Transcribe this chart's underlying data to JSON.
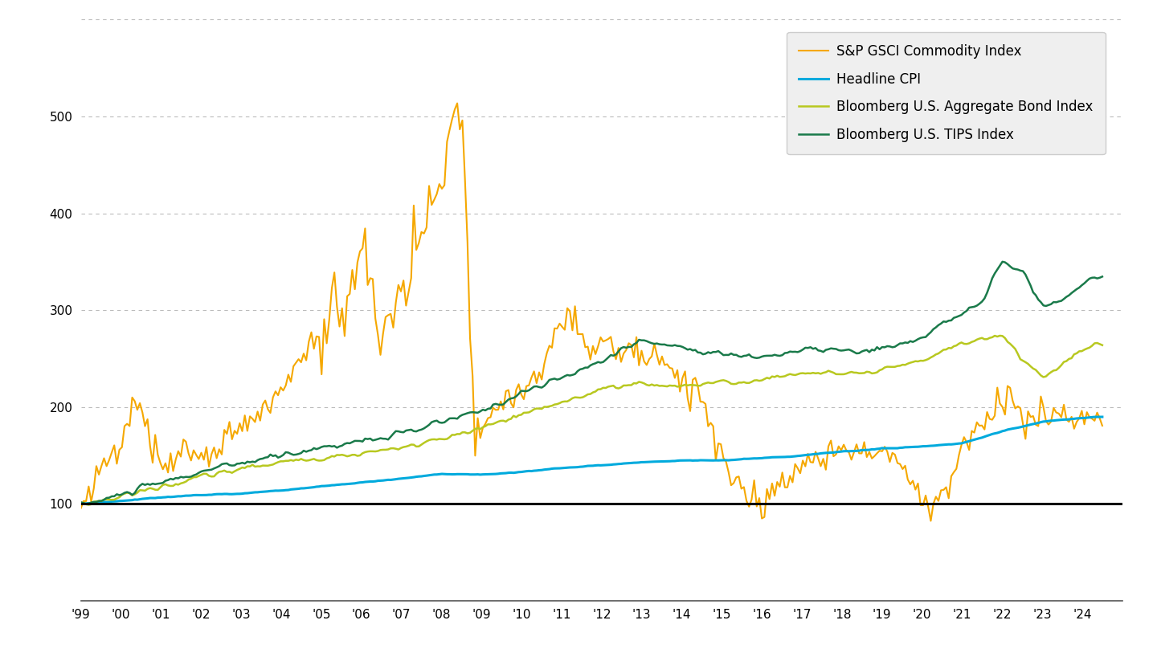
{
  "series": {
    "TIPS": {
      "label": "Bloomberg U.S. TIPS Index",
      "color": "#1a7a4a",
      "linewidth": 1.8
    },
    "AGG": {
      "label": "Bloomberg U.S. Aggregate Bond Index",
      "color": "#b8c820",
      "linewidth": 1.8
    },
    "CPI": {
      "label": "Headline CPI",
      "color": "#00aadd",
      "linewidth": 2.2
    },
    "GSCI": {
      "label": "S&P GSCI Commodity Index",
      "color": "#f5a800",
      "linewidth": 1.5
    }
  },
  "ylim": [
    0,
    600
  ],
  "yticks": [
    0,
    100,
    200,
    300,
    400,
    500,
    600
  ],
  "background_color": "#ffffff",
  "grid_color": "#aaaaaa",
  "legend_bg": "#efefef",
  "x_labels": [
    "'99",
    "'00",
    "'01",
    "'02",
    "'03",
    "'04",
    "'05",
    "'06",
    "'07",
    "'08",
    "'09",
    "'10",
    "'11",
    "'12",
    "'13",
    "'14",
    "'15",
    "'16",
    "'17",
    "'18",
    "'19",
    "'20",
    "'21",
    "'22",
    "'23",
    "'24"
  ],
  "tips_keypoints": {
    "years": [
      1999.0,
      1999.5,
      2000.0,
      2000.5,
      2001.0,
      2001.5,
      2002.0,
      2002.5,
      2003.0,
      2003.5,
      2004.0,
      2004.5,
      2005.0,
      2005.5,
      2006.0,
      2006.5,
      2007.0,
      2007.5,
      2008.0,
      2008.5,
      2009.0,
      2009.5,
      2010.0,
      2010.5,
      2011.0,
      2011.5,
      2012.0,
      2012.5,
      2013.0,
      2013.5,
      2014.0,
      2014.5,
      2015.0,
      2015.5,
      2016.0,
      2016.5,
      2017.0,
      2017.5,
      2018.0,
      2018.5,
      2019.0,
      2019.5,
      2020.0,
      2020.5,
      2021.0,
      2021.5,
      2022.0,
      2022.5,
      2023.0,
      2023.5,
      2024.3
    ],
    "values": [
      100,
      103,
      110,
      116,
      122,
      127,
      133,
      138,
      142,
      146,
      150,
      154,
      158,
      162,
      165,
      168,
      172,
      178,
      185,
      190,
      196,
      205,
      215,
      222,
      230,
      238,
      248,
      260,
      268,
      265,
      262,
      258,
      255,
      252,
      252,
      255,
      258,
      260,
      258,
      256,
      260,
      265,
      272,
      285,
      295,
      310,
      350,
      340,
      305,
      310,
      335
    ]
  },
  "agg_keypoints": {
    "years": [
      1999.0,
      1999.5,
      2000.0,
      2000.5,
      2001.0,
      2001.5,
      2002.0,
      2002.5,
      2003.0,
      2003.5,
      2004.0,
      2004.5,
      2005.0,
      2005.5,
      2006.0,
      2006.5,
      2007.0,
      2007.5,
      2008.0,
      2008.5,
      2009.0,
      2009.5,
      2010.0,
      2010.5,
      2011.0,
      2011.5,
      2012.0,
      2012.5,
      2013.0,
      2013.5,
      2014.0,
      2014.5,
      2015.0,
      2015.5,
      2016.0,
      2016.5,
      2017.0,
      2017.5,
      2018.0,
      2018.5,
      2019.0,
      2019.5,
      2020.0,
      2020.5,
      2021.0,
      2021.5,
      2022.0,
      2022.5,
      2023.0,
      2023.5,
      2024.3
    ],
    "values": [
      100,
      103,
      108,
      113,
      118,
      122,
      128,
      132,
      136,
      140,
      143,
      145,
      148,
      150,
      152,
      155,
      158,
      162,
      167,
      172,
      178,
      185,
      192,
      198,
      205,
      212,
      218,
      222,
      225,
      222,
      222,
      224,
      225,
      226,
      228,
      232,
      235,
      236,
      234,
      233,
      238,
      242,
      248,
      258,
      265,
      270,
      275,
      250,
      230,
      245,
      265
    ]
  },
  "cpi_keypoints": {
    "years": [
      1999.0,
      2000.0,
      2001.0,
      2002.0,
      2003.0,
      2004.0,
      2005.0,
      2006.0,
      2007.0,
      2008.0,
      2009.0,
      2010.0,
      2011.0,
      2012.0,
      2013.0,
      2014.0,
      2015.0,
      2016.0,
      2017.0,
      2018.0,
      2019.0,
      2020.0,
      2021.0,
      2022.0,
      2023.0,
      2024.3
    ],
    "values": [
      100,
      103,
      107,
      109,
      111,
      114,
      118,
      122,
      126,
      131,
      130,
      133,
      137,
      140,
      143,
      145,
      145,
      147,
      150,
      154,
      157,
      159,
      163,
      175,
      185,
      190
    ]
  },
  "gsci_keypoints": {
    "years": [
      1999.0,
      1999.5,
      2000.0,
      2000.3,
      2000.5,
      2000.7,
      2001.0,
      2001.5,
      2002.0,
      2002.5,
      2003.0,
      2003.5,
      2004.0,
      2004.5,
      2005.0,
      2005.3,
      2005.5,
      2005.8,
      2006.0,
      2006.2,
      2006.4,
      2006.6,
      2006.8,
      2007.0,
      2007.3,
      2007.5,
      2007.7,
      2008.0,
      2008.2,
      2008.5,
      2008.6,
      2008.8,
      2009.0,
      2009.5,
      2010.0,
      2010.5,
      2011.0,
      2011.3,
      2011.5,
      2011.8,
      2012.0,
      2012.5,
      2013.0,
      2013.5,
      2014.0,
      2014.5,
      2014.8,
      2015.0,
      2015.3,
      2015.5,
      2015.8,
      2016.0,
      2016.5,
      2017.0,
      2017.5,
      2018.0,
      2018.5,
      2019.0,
      2019.5,
      2020.0,
      2020.2,
      2020.5,
      2021.0,
      2021.5,
      2022.0,
      2022.3,
      2022.5,
      2022.8,
      2023.0,
      2023.5,
      2024.3
    ],
    "values": [
      100,
      130,
      160,
      210,
      185,
      165,
      145,
      155,
      145,
      165,
      175,
      200,
      215,
      250,
      285,
      310,
      295,
      330,
      370,
      350,
      290,
      310,
      295,
      315,
      345,
      375,
      400,
      430,
      470,
      530,
      430,
      175,
      185,
      200,
      215,
      240,
      285,
      295,
      270,
      255,
      265,
      255,
      255,
      250,
      235,
      210,
      175,
      155,
      130,
      110,
      105,
      100,
      125,
      140,
      145,
      155,
      150,
      155,
      145,
      100,
      78,
      110,
      155,
      185,
      210,
      205,
      190,
      185,
      195,
      190,
      185
    ]
  }
}
